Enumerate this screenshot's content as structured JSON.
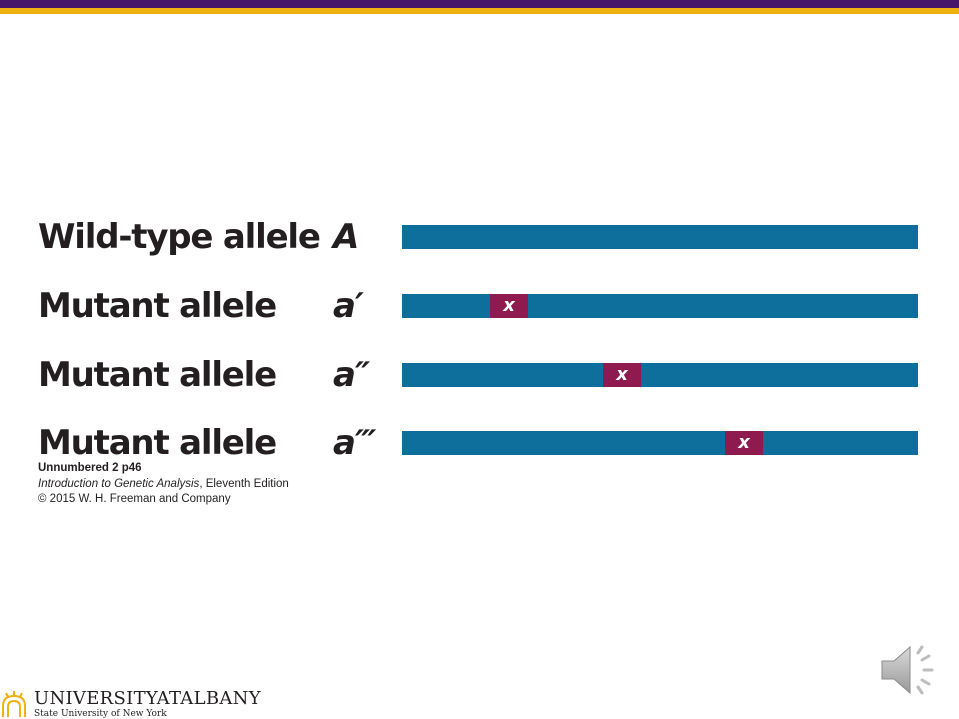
{
  "alleles": [
    {
      "label": "Wild-type allele",
      "symbol": "A",
      "mutation": "",
      "mutation_pos": null
    },
    {
      "label": "Mutant allele",
      "symbol": "a′",
      "mutation": "x",
      "mutation_pos": 0.17
    },
    {
      "label": "Mutant allele",
      "symbol": "a″",
      "mutation": "x",
      "mutation_pos": 0.39
    },
    {
      "label": "Mutant allele",
      "symbol": "a‴",
      "mutation": "x",
      "mutation_pos": 0.625
    }
  ],
  "caption": {
    "line1": "Unnumbered 2 p46",
    "book_title": "Introduction to Genetic Analysis",
    "edition": ", Eleventh Edition",
    "copyright": "© 2015 W. H. Freeman and Company"
  },
  "logo": {
    "name": "UNIVERSITYATALBANY",
    "subtitle": "State University of New York"
  },
  "colors": {
    "gene_bar": "#0f6f9c",
    "mutation": "#8e1a4f",
    "band_purple": "#46166b",
    "band_gold": "#eeb211"
  },
  "icons": [
    "sunburst-logo-icon",
    "speaker-icon"
  ]
}
